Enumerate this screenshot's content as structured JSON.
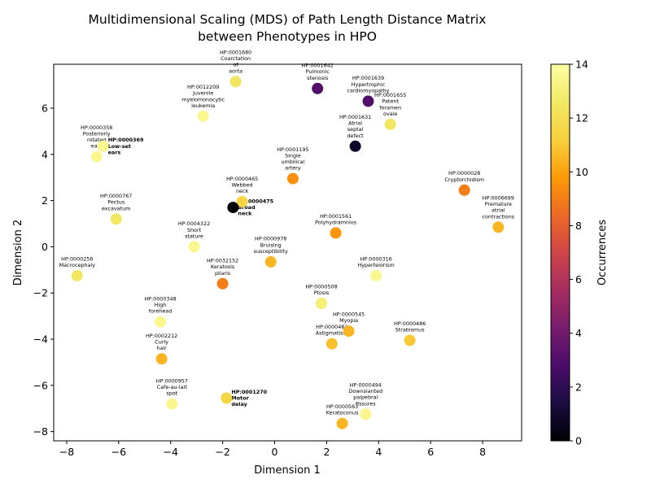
{
  "chart_data": {
    "type": "scatter",
    "title": [
      "Multidimensional Scaling (MDS) of Path Length Distance Matrix",
      "between Phenotypes in HPO"
    ],
    "xlabel": "Dimension 1",
    "ylabel": "Dimension 2",
    "xlim": [
      -8.5,
      9.5
    ],
    "ylim": [
      -8.4,
      7.9
    ],
    "xticks": [
      -8,
      -6,
      -4,
      -2,
      0,
      2,
      4,
      6,
      8
    ],
    "yticks": [
      -8,
      -6,
      -4,
      -2,
      0,
      2,
      4,
      6
    ],
    "grid": false,
    "colorbar": {
      "label": "Occurrences",
      "min": 0,
      "max": 14,
      "ticks": [
        0,
        2,
        4,
        6,
        8,
        10,
        12,
        14
      ],
      "colormap": "inferno"
    },
    "points": [
      {
        "x": -1.5,
        "y": 7.15,
        "c": 12.5,
        "label": [
          "HP:0001680",
          "Coarctation",
          "of",
          "aorta"
        ],
        "bold": false
      },
      {
        "x": 1.65,
        "y": 6.85,
        "c": 3.0,
        "label": [
          "HP:0001642",
          "Pulmonic",
          "stenosis"
        ],
        "bold": false
      },
      {
        "x": 3.6,
        "y": 6.3,
        "c": 3.0,
        "label": [
          "HP:0001639",
          "Hypertrophic",
          "cardiomyopathy"
        ],
        "bold": false
      },
      {
        "x": 4.45,
        "y": 5.3,
        "c": 12.5,
        "label": [
          "HP:0001655",
          "Patent",
          "foramen",
          "ovale"
        ],
        "bold": false
      },
      {
        "x": -2.75,
        "y": 5.65,
        "c": 13.5,
        "label": [
          "HP:0012209",
          "Juvenile",
          "myelomonocytic",
          "leukemia"
        ],
        "bold": false
      },
      {
        "x": 3.1,
        "y": 4.35,
        "c": 0.8,
        "label": [
          "HP:0001631",
          "Atrial",
          "septal",
          "defect"
        ],
        "bold": false
      },
      {
        "x": -6.85,
        "y": 3.9,
        "c": 13.5,
        "label": [
          "HP:0000358",
          "Posteriorly",
          "rotated",
          "ears"
        ],
        "bold": false
      },
      {
        "x": -6.6,
        "y": 4.35,
        "c": 13.5,
        "label": [
          "HP:0000369",
          "Low-set",
          "ears"
        ],
        "bold": true
      },
      {
        "x": 0.7,
        "y": 2.95,
        "c": 9.5,
        "label": [
          "HP:0001195",
          "Single",
          "umbilical",
          "artery"
        ],
        "bold": false
      },
      {
        "x": 7.3,
        "y": 2.45,
        "c": 9.0,
        "label": [
          "HP:0000028",
          "Cryptorchidism"
        ],
        "bold": false
      },
      {
        "x": -1.25,
        "y": 1.95,
        "c": 11.5,
        "label": [
          "HP:0000465",
          "Webbed",
          "neck"
        ],
        "bold": false
      },
      {
        "x": -1.6,
        "y": 1.7,
        "c": 0.0,
        "label": [
          "HP:0000475",
          "Broad",
          "neck"
        ],
        "bold": true
      },
      {
        "x": -6.1,
        "y": 1.2,
        "c": 12.5,
        "label": [
          "HP:0000767",
          "Pectus",
          "excavatum"
        ],
        "bold": false
      },
      {
        "x": 8.6,
        "y": 0.85,
        "c": 10.5,
        "label": [
          "HP:0006699",
          "Premature",
          "atrial",
          "contractions"
        ],
        "bold": false
      },
      {
        "x": 2.35,
        "y": 0.6,
        "c": 9.7,
        "label": [
          "HP:0001561",
          "Polyhydramnios"
        ],
        "bold": false
      },
      {
        "x": -3.1,
        "y": 0.0,
        "c": 13.5,
        "label": [
          "HP:0004322",
          "Short",
          "stature"
        ],
        "bold": false
      },
      {
        "x": -0.15,
        "y": -0.65,
        "c": 10.5,
        "label": [
          "HP:0000978",
          "Bruising",
          "susceptibility"
        ],
        "bold": false
      },
      {
        "x": -7.6,
        "y": -1.25,
        "c": 12.5,
        "label": [
          "HP:0000256",
          "Macrocephaly"
        ],
        "bold": false
      },
      {
        "x": -2.0,
        "y": -1.6,
        "c": 9.0,
        "label": [
          "HP:0032152",
          "Keratosis",
          "pilaris"
        ],
        "bold": false
      },
      {
        "x": 3.9,
        "y": -1.25,
        "c": 13.5,
        "label": [
          "HP:0000316",
          "Hypertelorism"
        ],
        "bold": false
      },
      {
        "x": 1.8,
        "y": -2.45,
        "c": 13.0,
        "label": [
          "HP:0000508",
          "Ptosis"
        ],
        "bold": false
      },
      {
        "x": -4.4,
        "y": -3.25,
        "c": 13.5,
        "label": [
          "HP:0000348",
          "High",
          "forehead"
        ],
        "bold": false
      },
      {
        "x": 2.85,
        "y": -3.65,
        "c": 10.5,
        "label": [
          "HP:0000545",
          "Myopia"
        ],
        "bold": false
      },
      {
        "x": 2.2,
        "y": -4.2,
        "c": 10.8,
        "label": [
          "HP:0000483",
          "Astigmatism"
        ],
        "bold": false
      },
      {
        "x": 5.2,
        "y": -4.05,
        "c": 11.0,
        "label": [
          "HP:0000486",
          "Strabismus"
        ],
        "bold": false
      },
      {
        "x": -4.35,
        "y": -4.85,
        "c": 10.5,
        "label": [
          "HP:0002212",
          "Curly",
          "hair"
        ],
        "bold": false
      },
      {
        "x": -3.95,
        "y": -6.8,
        "c": 13.5,
        "label": [
          "HP:0000957",
          "Cafe-au-lait",
          "spot"
        ],
        "bold": false
      },
      {
        "x": -1.85,
        "y": -6.55,
        "c": 11.5,
        "label": [
          "HP:0001270",
          "Motor",
          "delay"
        ],
        "bold": true
      },
      {
        "x": 3.5,
        "y": -7.25,
        "c": 13.5,
        "label": [
          "HP:0000494",
          "Downslanted",
          "palpebral",
          "fissures"
        ],
        "bold": false
      },
      {
        "x": 2.6,
        "y": -7.65,
        "c": 10.5,
        "label": [
          "HP:0000563",
          "Keratoconus"
        ],
        "bold": false
      }
    ]
  }
}
